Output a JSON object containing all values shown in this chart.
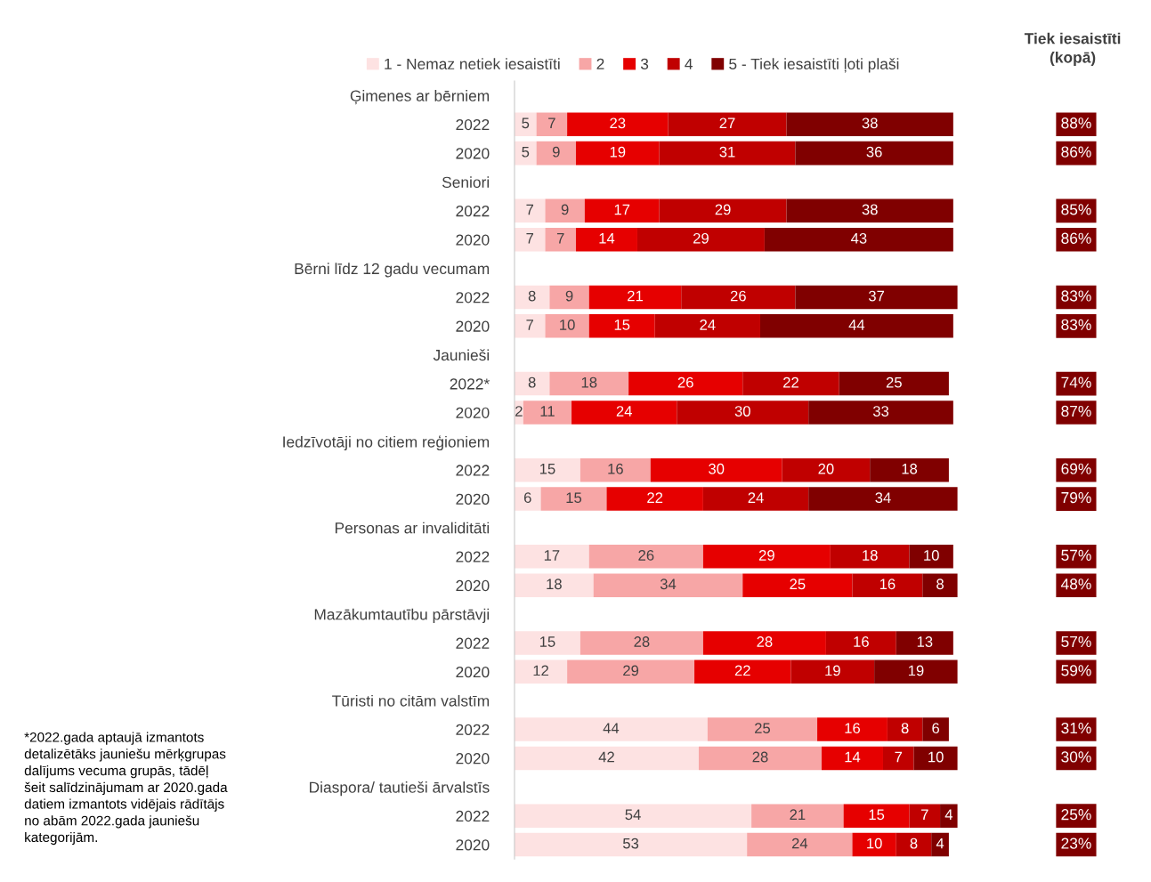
{
  "chart_data": [
    {
      "type": "bar",
      "orientation": "horizontal",
      "stacked": true,
      "data_labels": true,
      "legend": "top",
      "grid": false,
      "categories": [
        "Ģimenes ar bērniem",
        "2022",
        "2020",
        "Seniori",
        "2022",
        "2020",
        "Bērni līdz 12 gadu vecumam",
        "2022",
        "2020",
        "Jaunieši",
        "2022*",
        "2020",
        "Iedzīvotāji no citiem reģioniem",
        "2022",
        "2020",
        "Personas ar invaliditāti",
        "2022",
        "2020",
        "Mazākumtautību pārstāvji",
        "2022",
        "2020",
        "Tūristi no citām valstīm",
        "2022",
        "2020",
        "Diaspora/ tautieši ārvalstīs",
        "2022",
        "2020"
      ],
      "series": [
        {
          "name": "1 - Nemaz netiek iesaistīti",
          "color": "#fde2e2",
          "values": [
            null,
            5,
            5,
            null,
            7,
            7,
            null,
            8,
            7,
            null,
            8,
            2,
            null,
            15,
            6,
            null,
            17,
            18,
            null,
            15,
            12,
            null,
            44,
            42,
            null,
            54,
            53
          ]
        },
        {
          "name": "2",
          "color": "#f7a6a6",
          "values": [
            null,
            7,
            9,
            null,
            9,
            7,
            null,
            9,
            10,
            null,
            18,
            11,
            null,
            16,
            15,
            null,
            26,
            34,
            null,
            28,
            29,
            null,
            25,
            28,
            null,
            21,
            24
          ]
        },
        {
          "name": "3",
          "color": "#e60000",
          "values": [
            null,
            23,
            19,
            null,
            17,
            14,
            null,
            21,
            15,
            null,
            26,
            24,
            null,
            30,
            22,
            null,
            29,
            25,
            null,
            28,
            22,
            null,
            16,
            14,
            null,
            15,
            10
          ]
        },
        {
          "name": "4",
          "color": "#c00000",
          "values": [
            null,
            27,
            31,
            null,
            29,
            29,
            null,
            26,
            24,
            null,
            22,
            30,
            null,
            20,
            24,
            null,
            18,
            16,
            null,
            16,
            19,
            null,
            8,
            7,
            null,
            7,
            8
          ]
        },
        {
          "name": "5 - Tiek iesaistīti ļoti plaši",
          "color": "#800000",
          "values": [
            null,
            38,
            36,
            null,
            38,
            43,
            null,
            37,
            44,
            null,
            25,
            33,
            null,
            18,
            34,
            null,
            10,
            8,
            null,
            13,
            19,
            null,
            6,
            10,
            null,
            4,
            4
          ]
        }
      ],
      "annotations": [
        "*2022.gada aptaujā izmantots\ndetalizētāks jauniešu mērķgrupas\ndalījums vecuma grupās, tādēļ\nšeit salīdzinājumam ar 2020.gada\ndatiem izmantots vidējais rādītājs\nno abām 2022.gada jauniešu\nkategorijām."
      ]
    },
    {
      "type": "other",
      "title": "Tiek iesaistīti\n(kopā)",
      "color": "#800000",
      "data_labels": true,
      "categories": [
        null,
        null,
        null,
        null,
        null,
        null,
        null,
        null,
        null,
        null,
        null,
        null,
        null,
        null,
        null,
        null,
        null,
        null,
        null,
        null,
        null,
        null,
        null,
        null,
        null,
        null,
        null
      ],
      "value_labels": [
        null,
        "88%",
        "86%",
        null,
        "85%",
        "86%",
        null,
        "83%",
        "83%",
        null,
        "74%",
        "87%",
        null,
        "69%",
        "79%",
        null,
        "57%",
        "48%",
        null,
        "57%",
        "59%",
        null,
        "31%",
        "30%",
        null,
        "25%",
        "23%"
      ]
    }
  ]
}
